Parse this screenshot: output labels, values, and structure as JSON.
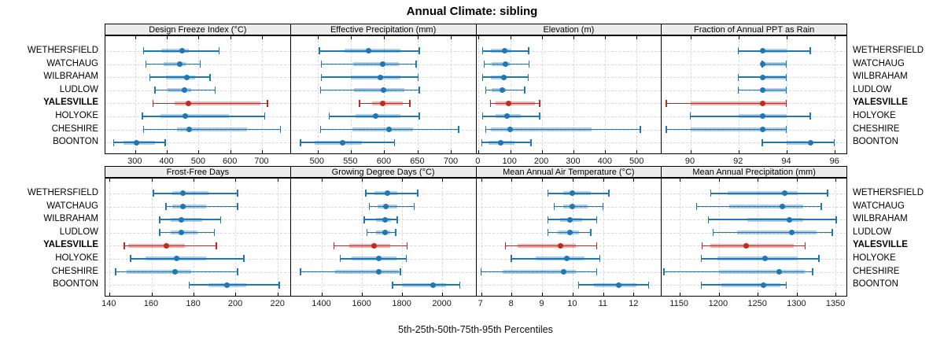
{
  "title": "Annual Climate: sibling",
  "caption": "5th-25th-50th-75th-95th Percentiles",
  "stations": [
    {
      "name": "WETHERSFIELD",
      "highlight": false
    },
    {
      "name": "WATCHAUG",
      "highlight": false
    },
    {
      "name": "WILBRAHAM",
      "highlight": false
    },
    {
      "name": "LUDLOW",
      "highlight": false
    },
    {
      "name": "YALESVILLE",
      "highlight": true
    },
    {
      "name": "HOLYOKE",
      "highlight": false
    },
    {
      "name": "CHESHIRE",
      "highlight": false
    },
    {
      "name": "BOONTON",
      "highlight": false
    }
  ],
  "colors": {
    "normal": "#1f77b4",
    "normal_band": "rgba(31,119,180,0.35)",
    "highlight": "#bf2a25",
    "highlight_band": "rgba(191,42,37,0.35)",
    "grid": "#d8d8d8",
    "header_bg": "#ececec",
    "border": "#000000"
  },
  "chart_data": [
    {
      "type": "dotplot-percentile",
      "title": "Design Freeze Index (°C)",
      "xlim": [
        205,
        790
      ],
      "ticks": [
        300,
        400,
        500,
        600,
        700
      ],
      "rows": [
        {
          "station": "WETHERSFIELD",
          "p5": 327,
          "p25": 383,
          "p50": 447,
          "p75": 468,
          "p95": 566
        },
        {
          "station": "WATCHAUG",
          "p5": 334,
          "p25": 389,
          "p50": 440,
          "p75": 458,
          "p95": 506
        },
        {
          "station": "WILBRAHAM",
          "p5": 346,
          "p25": 397,
          "p50": 462,
          "p75": 490,
          "p95": 537
        },
        {
          "station": "LUDLOW",
          "p5": 362,
          "p25": 401,
          "p50": 456,
          "p75": 477,
          "p95": 553
        },
        {
          "station": "YALESVILLE",
          "p5": 357,
          "p25": 425,
          "p50": 469,
          "p75": 695,
          "p95": 719
        },
        {
          "station": "HOLYOKE",
          "p5": 323,
          "p25": 380,
          "p50": 457,
          "p75": 596,
          "p95": 710
        },
        {
          "station": "CHESHIRE",
          "p5": 327,
          "p25": 433,
          "p50": 470,
          "p75": 654,
          "p95": 760
        },
        {
          "station": "BOONTON",
          "p5": 232,
          "p25": 262,
          "p50": 304,
          "p75": 363,
          "p95": 395
        }
      ]
    },
    {
      "type": "dotplot-percentile",
      "title": "Effective Precipitation (mm)",
      "xlim": [
        460,
        737
      ],
      "ticks": [
        500,
        550,
        600,
        650,
        700
      ],
      "rows": [
        {
          "station": "WETHERSFIELD",
          "p5": 503,
          "p25": 540,
          "p50": 577,
          "p75": 624,
          "p95": 653
        },
        {
          "station": "WATCHAUG",
          "p5": 506,
          "p25": 553,
          "p50": 598,
          "p75": 622,
          "p95": 648
        },
        {
          "station": "WILBRAHAM",
          "p5": 506,
          "p25": 550,
          "p50": 594,
          "p75": 624,
          "p95": 651
        },
        {
          "station": "LUDLOW",
          "p5": 505,
          "p25": 555,
          "p50": 599,
          "p75": 630,
          "p95": 653
        },
        {
          "station": "YALESVILLE",
          "p5": 563,
          "p25": 582,
          "p50": 598,
          "p75": 628,
          "p95": 639
        },
        {
          "station": "HOLYOKE",
          "p5": 518,
          "p25": 557,
          "p50": 587,
          "p75": 624,
          "p95": 653
        },
        {
          "station": "CHESHIRE",
          "p5": 505,
          "p25": 552,
          "p50": 607,
          "p75": 643,
          "p95": 712
        },
        {
          "station": "BOONTON",
          "p5": 475,
          "p25": 496,
          "p50": 538,
          "p75": 567,
          "p95": 616
        }
      ]
    },
    {
      "type": "dotplot-percentile",
      "title": "Elevation (m)",
      "xlim": [
        -7,
        577
      ],
      "ticks": [
        0,
        100,
        200,
        300,
        400,
        500
      ],
      "rows": [
        {
          "station": "WETHERSFIELD",
          "p5": 14,
          "p25": 38,
          "p50": 82,
          "p75": 102,
          "p95": 159
        },
        {
          "station": "WATCHAUG",
          "p5": 18,
          "p25": 42,
          "p50": 86,
          "p75": 98,
          "p95": 160
        },
        {
          "station": "WILBRAHAM",
          "p5": 14,
          "p25": 38,
          "p50": 80,
          "p75": 90,
          "p95": 158
        },
        {
          "station": "LUDLOW",
          "p5": 24,
          "p25": 42,
          "p50": 76,
          "p75": 86,
          "p95": 146
        },
        {
          "station": "YALESVILLE",
          "p5": 38,
          "p25": 54,
          "p50": 96,
          "p75": 178,
          "p95": 194
        },
        {
          "station": "HOLYOKE",
          "p5": 14,
          "p25": 54,
          "p50": 91,
          "p75": 134,
          "p95": 194
        },
        {
          "station": "CHESHIRE",
          "p5": 24,
          "p25": 40,
          "p50": 100,
          "p75": 358,
          "p95": 512
        },
        {
          "station": "BOONTON",
          "p5": 11,
          "p25": 32,
          "p50": 71,
          "p75": 114,
          "p95": 166
        }
      ]
    },
    {
      "type": "dotplot-percentile",
      "title": "Fraction of Annual PPT as Rain",
      "xlim": [
        88.8,
        96.5
      ],
      "ticks": [
        90,
        92,
        94,
        96
      ],
      "rows": [
        {
          "station": "WETHERSFIELD",
          "p5": 92,
          "p25": 93,
          "p50": 93,
          "p75": 94,
          "p95": 95
        },
        {
          "station": "WATCHAUG",
          "p5": 93,
          "p25": 93,
          "p50": 93,
          "p75": 94,
          "p95": 94
        },
        {
          "station": "WILBRAHAM",
          "p5": 92,
          "p25": 93,
          "p50": 93,
          "p75": 94,
          "p95": 94
        },
        {
          "station": "LUDLOW",
          "p5": 92,
          "p25": 93,
          "p50": 93,
          "p75": 94,
          "p95": 94
        },
        {
          "station": "YALESVILLE",
          "p5": 89,
          "p25": 90,
          "p50": 93,
          "p75": 94,
          "p95": 94
        },
        {
          "station": "HOLYOKE",
          "p5": 90,
          "p25": 92,
          "p50": 93,
          "p75": 94,
          "p95": 95
        },
        {
          "station": "CHESHIRE",
          "p5": 89,
          "p25": 90,
          "p50": 93,
          "p75": 94,
          "p95": 94
        },
        {
          "station": "BOONTON",
          "p5": 93,
          "p25": 94,
          "p50": 95,
          "p75": 95,
          "p95": 96
        }
      ]
    },
    {
      "type": "dotplot-percentile",
      "title": "Frost-Free Days",
      "xlim": [
        138,
        226
      ],
      "ticks": [
        140,
        160,
        180,
        200,
        220
      ],
      "rows": [
        {
          "station": "WETHERSFIELD",
          "p5": 161,
          "p25": 170,
          "p50": 175,
          "p75": 187,
          "p95": 201
        },
        {
          "station": "WATCHAUG",
          "p5": 167,
          "p25": 170,
          "p50": 175,
          "p75": 186,
          "p95": 201
        },
        {
          "station": "WILBRAHAM",
          "p5": 164,
          "p25": 169,
          "p50": 174,
          "p75": 184,
          "p95": 193
        },
        {
          "station": "LUDLOW",
          "p5": 164,
          "p25": 169,
          "p50": 174,
          "p75": 182,
          "p95": 190
        },
        {
          "station": "YALESVILLE",
          "p5": 147,
          "p25": 149,
          "p50": 167,
          "p75": 176,
          "p95": 191
        },
        {
          "station": "HOLYOKE",
          "p5": 150,
          "p25": 157,
          "p50": 172,
          "p75": 186,
          "p95": 204
        },
        {
          "station": "CHESHIRE",
          "p5": 143,
          "p25": 148,
          "p50": 171,
          "p75": 179,
          "p95": 201
        },
        {
          "station": "BOONTON",
          "p5": 178,
          "p25": 187,
          "p50": 196,
          "p75": 205,
          "p95": 221
        }
      ]
    },
    {
      "type": "dotplot-percentile",
      "title": "Growing Degree Days (°C)",
      "xlim": [
        1244,
        2168
      ],
      "ticks": [
        1400,
        1600,
        1800,
        2000
      ],
      "rows": [
        {
          "station": "WETHERSFIELD",
          "p5": 1619,
          "p25": 1664,
          "p50": 1727,
          "p75": 1778,
          "p95": 1880
        },
        {
          "station": "WATCHAUG",
          "p5": 1638,
          "p25": 1676,
          "p50": 1721,
          "p75": 1778,
          "p95": 1861
        },
        {
          "station": "WILBRAHAM",
          "p5": 1613,
          "p25": 1670,
          "p50": 1715,
          "p75": 1746,
          "p95": 1778
        },
        {
          "station": "LUDLOW",
          "p5": 1625,
          "p25": 1670,
          "p50": 1717,
          "p75": 1740,
          "p95": 1769
        },
        {
          "station": "YALESVILLE",
          "p5": 1460,
          "p25": 1536,
          "p50": 1660,
          "p75": 1740,
          "p95": 1827
        },
        {
          "station": "HOLYOKE",
          "p5": 1492,
          "p25": 1549,
          "p50": 1683,
          "p75": 1772,
          "p95": 1823
        },
        {
          "station": "CHESHIRE",
          "p5": 1294,
          "p25": 1466,
          "p50": 1685,
          "p75": 1785,
          "p95": 1793
        },
        {
          "station": "BOONTON",
          "p5": 1753,
          "p25": 1804,
          "p50": 1954,
          "p75": 2020,
          "p95": 2090
        }
      ]
    },
    {
      "type": "dotplot-percentile",
      "title": "Mean Annual Air Temperature (°C)",
      "xlim": [
        6.84,
        12.9
      ],
      "ticks": [
        7,
        8,
        9,
        10,
        11,
        12
      ],
      "rows": [
        {
          "station": "WETHERSFIELD",
          "p5": 9.2,
          "p25": 9.7,
          "p50": 10.0,
          "p75": 10.6,
          "p95": 11.2
        },
        {
          "station": "WATCHAUG",
          "p5": 9.4,
          "p25": 9.7,
          "p50": 10.0,
          "p75": 10.5,
          "p95": 11.0
        },
        {
          "station": "WILBRAHAM",
          "p5": 9.2,
          "p25": 9.6,
          "p50": 9.9,
          "p75": 10.3,
          "p95": 10.8
        },
        {
          "station": "LUDLOW",
          "p5": 9.2,
          "p25": 9.5,
          "p50": 9.9,
          "p75": 10.2,
          "p95": 10.6
        },
        {
          "station": "YALESVILLE",
          "p5": 7.8,
          "p25": 8.2,
          "p50": 9.6,
          "p75": 10.1,
          "p95": 10.8
        },
        {
          "station": "HOLYOKE",
          "p5": 8.0,
          "p25": 8.8,
          "p50": 9.8,
          "p75": 10.4,
          "p95": 10.9
        },
        {
          "station": "CHESHIRE",
          "p5": 7.0,
          "p25": 7.7,
          "p50": 9.7,
          "p75": 10.1,
          "p95": 10.8
        },
        {
          "station": "BOONTON",
          "p5": 10.2,
          "p25": 10.7,
          "p50": 11.5,
          "p75": 12.1,
          "p95": 12.5
        }
      ]
    },
    {
      "type": "dotplot-percentile",
      "title": "Mean Annual Precipitation (mm)",
      "xlim": [
        1127,
        1364
      ],
      "ticks": [
        1150,
        1200,
        1250,
        1300,
        1350
      ],
      "rows": [
        {
          "station": "WETHERSFIELD",
          "p5": 1190,
          "p25": 1212,
          "p50": 1285,
          "p75": 1300,
          "p95": 1340
        },
        {
          "station": "WATCHAUG",
          "p5": 1172,
          "p25": 1214,
          "p50": 1282,
          "p75": 1308,
          "p95": 1332
        },
        {
          "station": "WILBRAHAM",
          "p5": 1187,
          "p25": 1237,
          "p50": 1291,
          "p75": 1308,
          "p95": 1351
        },
        {
          "station": "LUDLOW",
          "p5": 1193,
          "p25": 1224,
          "p50": 1294,
          "p75": 1326,
          "p95": 1346
        },
        {
          "station": "YALESVILLE",
          "p5": 1179,
          "p25": 1189,
          "p50": 1235,
          "p75": 1296,
          "p95": 1311
        },
        {
          "station": "HOLYOKE",
          "p5": 1178,
          "p25": 1198,
          "p50": 1260,
          "p75": 1301,
          "p95": 1329
        },
        {
          "station": "CHESHIRE",
          "p5": 1130,
          "p25": 1200,
          "p50": 1278,
          "p75": 1310,
          "p95": 1321
        },
        {
          "station": "BOONTON",
          "p5": 1178,
          "p25": 1203,
          "p50": 1257,
          "p75": 1279,
          "p95": 1287
        }
      ]
    }
  ]
}
